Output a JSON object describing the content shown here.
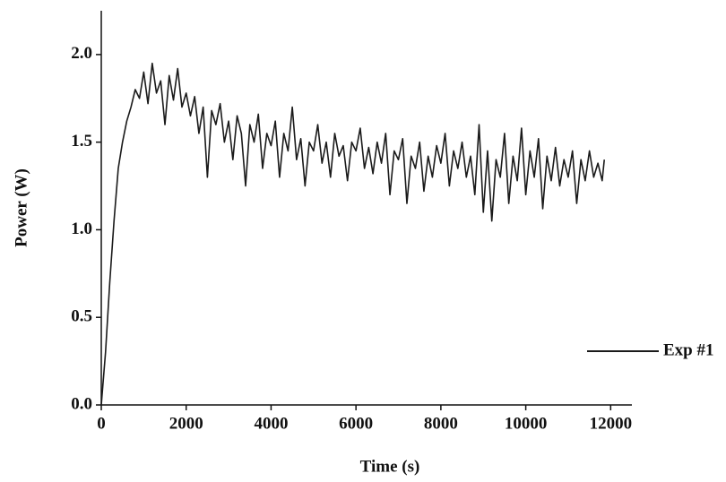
{
  "chart_data": {
    "type": "line",
    "xlabel": "Time (s)",
    "ylabel": "Power (W)",
    "x": [
      0,
      100,
      200,
      300,
      400,
      500,
      600,
      700,
      800,
      900,
      1000,
      1100,
      1200,
      1300,
      1400,
      1500,
      1600,
      1700,
      1800,
      1900,
      2000,
      2100,
      2200,
      2300,
      2400,
      2500,
      2600,
      2700,
      2800,
      2900,
      3000,
      3100,
      3200,
      3300,
      3400,
      3500,
      3600,
      3700,
      3800,
      3900,
      4000,
      4100,
      4200,
      4300,
      4400,
      4500,
      4600,
      4700,
      4800,
      4900,
      5000,
      5100,
      5200,
      5300,
      5400,
      5500,
      5600,
      5700,
      5800,
      5900,
      6000,
      6100,
      6200,
      6300,
      6400,
      6500,
      6600,
      6700,
      6800,
      6900,
      7000,
      7100,
      7200,
      7300,
      7400,
      7500,
      7600,
      7700,
      7800,
      7900,
      8000,
      8100,
      8200,
      8300,
      8400,
      8500,
      8600,
      8700,
      8800,
      8900,
      9000,
      9100,
      9200,
      9300,
      9400,
      9500,
      9600,
      9700,
      9800,
      9900,
      10000,
      10100,
      10200,
      10300,
      10400,
      10500,
      10600,
      10700,
      10800,
      10900,
      11000,
      11100,
      11200,
      11300,
      11400,
      11500,
      11600,
      11700,
      11800,
      11850
    ],
    "series": [
      {
        "name": "Exp #1",
        "color": "#1a1a1a",
        "values": [
          0,
          0.3,
          0.7,
          1.05,
          1.35,
          1.5,
          1.62,
          1.7,
          1.8,
          1.75,
          1.9,
          1.72,
          1.95,
          1.78,
          1.85,
          1.6,
          1.88,
          1.74,
          1.92,
          1.7,
          1.78,
          1.65,
          1.76,
          1.55,
          1.7,
          1.3,
          1.68,
          1.6,
          1.72,
          1.5,
          1.62,
          1.4,
          1.65,
          1.55,
          1.25,
          1.6,
          1.5,
          1.66,
          1.35,
          1.55,
          1.48,
          1.62,
          1.3,
          1.55,
          1.45,
          1.7,
          1.4,
          1.52,
          1.25,
          1.5,
          1.45,
          1.6,
          1.38,
          1.5,
          1.3,
          1.55,
          1.42,
          1.48,
          1.28,
          1.5,
          1.45,
          1.58,
          1.35,
          1.47,
          1.32,
          1.5,
          1.38,
          1.55,
          1.2,
          1.45,
          1.4,
          1.52,
          1.15,
          1.42,
          1.35,
          1.5,
          1.22,
          1.42,
          1.3,
          1.48,
          1.38,
          1.55,
          1.25,
          1.45,
          1.35,
          1.5,
          1.3,
          1.42,
          1.2,
          1.6,
          1.1,
          1.45,
          1.05,
          1.4,
          1.3,
          1.55,
          1.15,
          1.42,
          1.28,
          1.58,
          1.2,
          1.45,
          1.3,
          1.52,
          1.12,
          1.42,
          1.28,
          1.47,
          1.25,
          1.4,
          1.3,
          1.45,
          1.15,
          1.4,
          1.28,
          1.45,
          1.3,
          1.38,
          1.28,
          1.4
        ]
      }
    ],
    "xlim": [
      0,
      12500
    ],
    "ylim": [
      0,
      2.25
    ],
    "xticks": [
      0,
      2000,
      4000,
      6000,
      8000,
      10000,
      12000
    ],
    "yticks": [
      {
        "value": 0,
        "label": "0.0"
      },
      {
        "value": 0.5,
        "label": "0.5"
      },
      {
        "value": 1,
        "label": "1.0"
      },
      {
        "value": 1.5,
        "label": "1.5"
      },
      {
        "value": 2,
        "label": "2.0"
      }
    ],
    "legend": "right"
  }
}
